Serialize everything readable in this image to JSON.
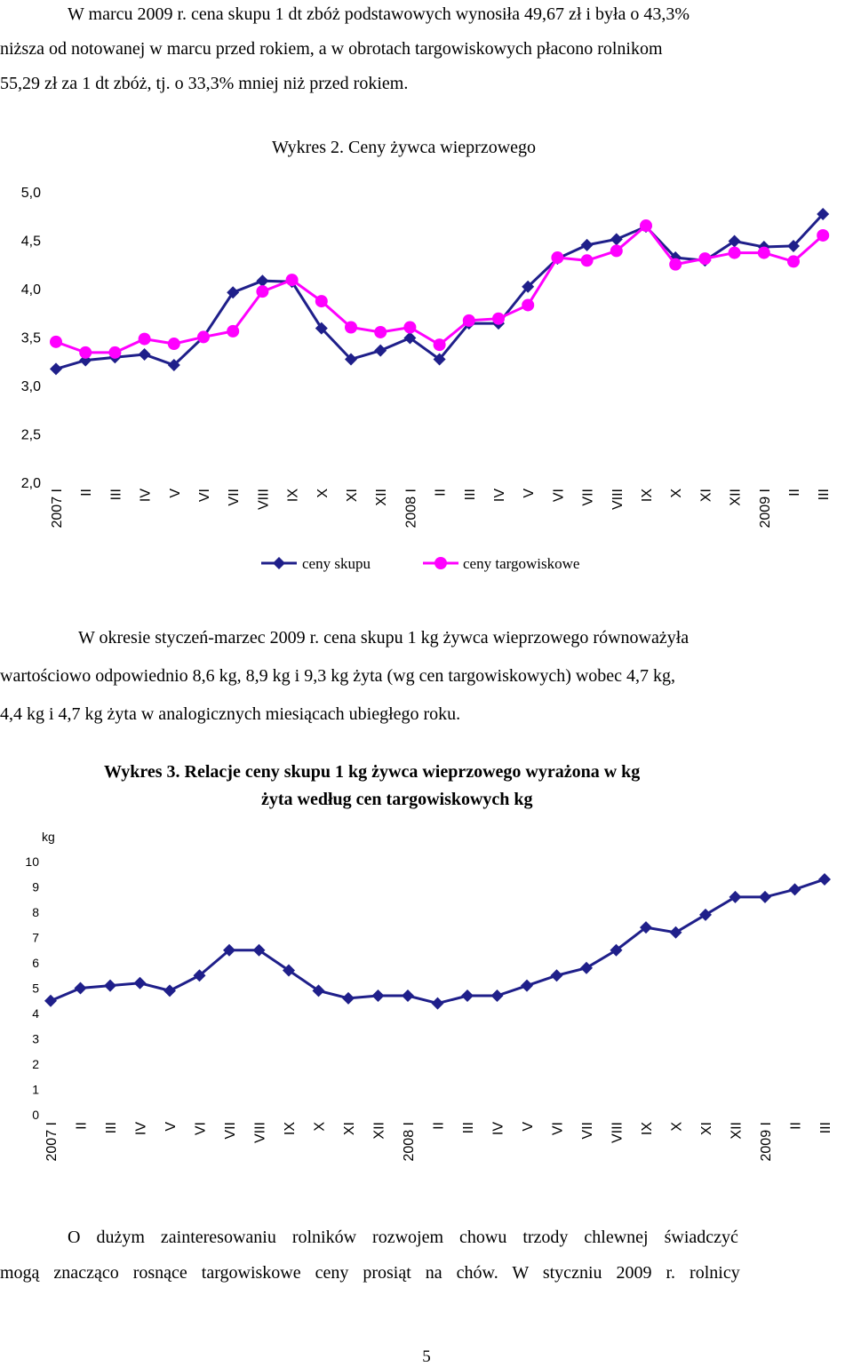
{
  "para1": [
    "W marcu 2009 r. cena skupu 1 dt zbóż podstawowych wynosiła 49,67 zł i była o 43,3%",
    "niższa od notowanej w marcu przed rokiem, a w obrotach targowiskowych płacono rolnikom",
    "55,29 zł za 1 dt zbóż, tj. o 33,3% mniej niż przed rokiem."
  ],
  "para2": [
    "W okresie styczeń-marzec 2009 r. cena skupu 1 kg żywca wieprzowego równoważyła",
    "wartościowo odpowiednio 8,6 kg, 8,9 kg i 9,3 kg żyta (wg cen targowiskowych) wobec 4,7 kg,",
    "4,4 kg i 4,7 kg żyta w analogicznych miesiącach ubiegłego roku."
  ],
  "para3": [
    "O dużym zainteresowaniu rolników rozwojem chowu trzody chlewnej świadczyć",
    "mogą znacząco rosnące targowiskowe ceny prosiąt na chów. W styczniu 2009 r. rolnicy"
  ],
  "page_number": "5",
  "chart_data": [
    {
      "type": "line",
      "title": "Wykres 2. Ceny żywca wieprzowego",
      "x": [
        "2007 I",
        "II",
        "III",
        "IV",
        "V",
        "VI",
        "VII",
        "VIII",
        "IX",
        "X",
        "XI",
        "XII",
        "2008 I",
        "II",
        "III",
        "IV",
        "V",
        "VI",
        "VII",
        "VIII",
        "IX",
        "X",
        "XI",
        "XII",
        "2009 I",
        "II",
        "III"
      ],
      "y_ticks": [
        "5,0",
        "4,5",
        "4,0",
        "3,5",
        "3,0",
        "2,5",
        "2,0"
      ],
      "ylim": [
        2.0,
        5.0
      ],
      "legend_position": "bottom",
      "series": [
        {
          "name": "ceny skupu",
          "color": "#1f1f8a",
          "marker": "diamond",
          "values": [
            3.18,
            3.27,
            3.3,
            3.33,
            3.22,
            3.51,
            3.97,
            4.09,
            4.08,
            3.6,
            3.28,
            3.37,
            3.5,
            3.28,
            3.65,
            3.65,
            4.03,
            4.32,
            4.46,
            4.52,
            4.65,
            4.33,
            4.3,
            4.5,
            4.44,
            4.45,
            4.78
          ]
        },
        {
          "name": "ceny targowiskowe",
          "color": "#ff00ff",
          "marker": "circle",
          "values": [
            3.46,
            3.35,
            3.35,
            3.49,
            3.44,
            3.51,
            3.57,
            3.98,
            4.1,
            3.88,
            3.61,
            3.56,
            3.61,
            3.43,
            3.68,
            3.7,
            3.84,
            4.33,
            4.3,
            4.4,
            4.66,
            4.26,
            4.32,
            4.38,
            4.38,
            4.29,
            4.56
          ]
        }
      ]
    },
    {
      "type": "line",
      "title": "Wykres 3. Relacje ceny skupu 1 kg żywca wieprzowego wyrażona w kg",
      "subtitle": "żyta według cen targowiskowych kg",
      "ylabel": "kg",
      "x": [
        "2007 I",
        "II",
        "III",
        "IV",
        "V",
        "VI",
        "VII",
        "VIII",
        "IX",
        "X",
        "XI",
        "XII",
        "2008 I",
        "II",
        "III",
        "IV",
        "V",
        "VI",
        "VII",
        "VIII",
        "IX",
        "X",
        "XI",
        "XII",
        "2009 I",
        "II",
        "III"
      ],
      "y_ticks": [
        "10",
        "9",
        "8",
        "7",
        "6",
        "5",
        "4",
        "3",
        "2",
        "1",
        "0"
      ],
      "ylim": [
        0,
        10
      ],
      "series": [
        {
          "color": "#1f1f8a",
          "marker": "diamond",
          "values": [
            4.5,
            5.0,
            5.1,
            5.2,
            4.9,
            5.5,
            6.5,
            6.5,
            5.7,
            4.9,
            4.6,
            4.7,
            4.7,
            4.4,
            4.7,
            4.7,
            5.1,
            5.5,
            5.8,
            6.5,
            7.4,
            7.2,
            7.9,
            8.6,
            8.6,
            8.9,
            9.3
          ]
        }
      ]
    }
  ]
}
